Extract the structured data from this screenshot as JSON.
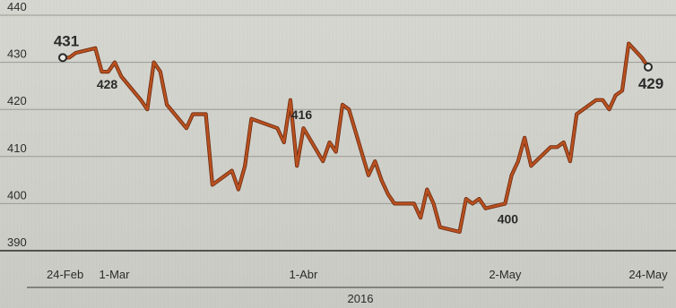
{
  "chart_data": {
    "type": "line",
    "title": "",
    "xlabel": "2016",
    "ylabel": "",
    "ylim": [
      390,
      440
    ],
    "yticks": [
      390,
      400,
      410,
      420,
      430,
      440
    ],
    "x_ticks": [
      {
        "label": "24-Feb",
        "date": "2016-02-24"
      },
      {
        "label": "1-Mar",
        "date": "2016-03-01"
      },
      {
        "label": "1-Abr",
        "date": "2016-04-01"
      },
      {
        "label": "2-May",
        "date": "2016-05-02"
      },
      {
        "label": "24-May",
        "date": "2016-05-24"
      }
    ],
    "year_label": "2016",
    "grid": true,
    "line_color": "#b8501f",
    "series": [
      {
        "points": [
          [
            "2016-02-24",
            431
          ],
          [
            "2016-02-25",
            431
          ],
          [
            "2016-02-26",
            432
          ],
          [
            "2016-02-29",
            433
          ],
          [
            "2016-03-01",
            428
          ],
          [
            "2016-03-02",
            428
          ],
          [
            "2016-03-03",
            430
          ],
          [
            "2016-03-04",
            427
          ],
          [
            "2016-03-07",
            422
          ],
          [
            "2016-03-08",
            420
          ],
          [
            "2016-03-09",
            430
          ],
          [
            "2016-03-10",
            428
          ],
          [
            "2016-03-11",
            421
          ],
          [
            "2016-03-14",
            416
          ],
          [
            "2016-03-15",
            419
          ],
          [
            "2016-03-16",
            419
          ],
          [
            "2016-03-17",
            419
          ],
          [
            "2016-03-18",
            404
          ],
          [
            "2016-03-21",
            407
          ],
          [
            "2016-03-22",
            403
          ],
          [
            "2016-03-23",
            408
          ],
          [
            "2016-03-24",
            418
          ],
          [
            "2016-03-28",
            416
          ],
          [
            "2016-03-29",
            413
          ],
          [
            "2016-03-30",
            422
          ],
          [
            "2016-03-31",
            408
          ],
          [
            "2016-04-01",
            416
          ],
          [
            "2016-04-04",
            409
          ],
          [
            "2016-04-05",
            413
          ],
          [
            "2016-04-06",
            411
          ],
          [
            "2016-04-07",
            421
          ],
          [
            "2016-04-08",
            420
          ],
          [
            "2016-04-11",
            406
          ],
          [
            "2016-04-12",
            409
          ],
          [
            "2016-04-13",
            405
          ],
          [
            "2016-04-14",
            402
          ],
          [
            "2016-04-15",
            400
          ],
          [
            "2016-04-18",
            400
          ],
          [
            "2016-04-19",
            397
          ],
          [
            "2016-04-20",
            403
          ],
          [
            "2016-04-21",
            400
          ],
          [
            "2016-04-22",
            395
          ],
          [
            "2016-04-25",
            394
          ],
          [
            "2016-04-26",
            401
          ],
          [
            "2016-04-27",
            400
          ],
          [
            "2016-04-28",
            401
          ],
          [
            "2016-04-29",
            399
          ],
          [
            "2016-05-02",
            400
          ],
          [
            "2016-05-03",
            406
          ],
          [
            "2016-05-04",
            409
          ],
          [
            "2016-05-05",
            414
          ],
          [
            "2016-05-06",
            408
          ],
          [
            "2016-05-09",
            412
          ],
          [
            "2016-05-10",
            412
          ],
          [
            "2016-05-11",
            413
          ],
          [
            "2016-05-12",
            409
          ],
          [
            "2016-05-13",
            419
          ],
          [
            "2016-05-16",
            422
          ],
          [
            "2016-05-17",
            422
          ],
          [
            "2016-05-18",
            420
          ],
          [
            "2016-05-19",
            423
          ],
          [
            "2016-05-20",
            424
          ],
          [
            "2016-05-21",
            434
          ],
          [
            "2016-05-23",
            431
          ],
          [
            "2016-05-24",
            429
          ]
        ]
      }
    ],
    "annotations": [
      {
        "label": "431",
        "date": "2016-02-24",
        "value": 431,
        "marker": true,
        "bold": true,
        "size": "large"
      },
      {
        "label": "428",
        "date": "2016-03-01",
        "value": 428,
        "marker": false,
        "bold": true,
        "size": "medium"
      },
      {
        "label": "416",
        "date": "2016-04-01",
        "value": 416,
        "marker": false,
        "bold": true,
        "size": "medium"
      },
      {
        "label": "400",
        "date": "2016-05-02",
        "value": 400,
        "marker": false,
        "bold": true,
        "size": "medium"
      },
      {
        "label": "429",
        "date": "2016-05-24",
        "value": 429,
        "marker": true,
        "bold": true,
        "size": "large"
      }
    ]
  }
}
